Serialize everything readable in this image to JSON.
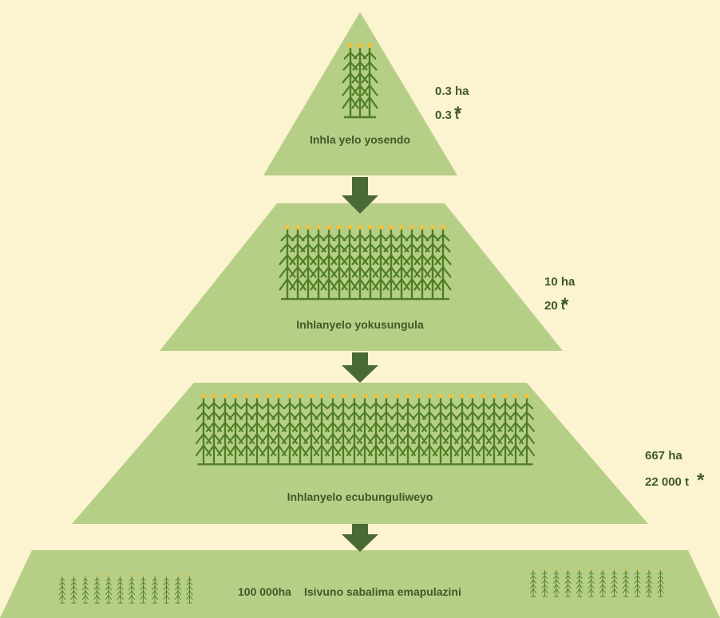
{
  "levels": [
    {
      "label": "Inhla yelo yosendo",
      "area": "0.3 ha",
      "yield": "0.3 t",
      "asterisk": "*"
    },
    {
      "label": "Inhlanyelo yokusungula",
      "area": "10 ha",
      "yield": "20 t",
      "asterisk": "*"
    },
    {
      "label": "Inhlanyelo ecubunguliweyo",
      "area": "667 ha",
      "yield": "22 000 t",
      "asterisk": "*"
    },
    {
      "area": "100 000ha",
      "label": "Isivuno sabalima emapulazini"
    }
  ]
}
